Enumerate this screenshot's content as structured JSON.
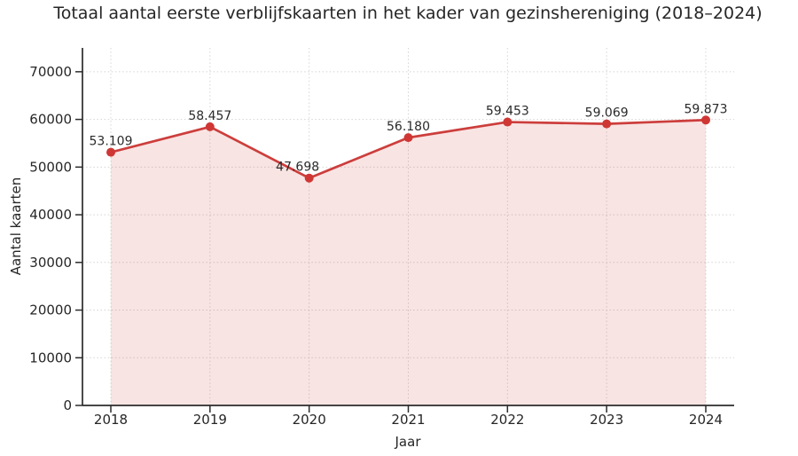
{
  "chart_data": {
    "type": "line",
    "title": "Totaal aantal eerste verblijfskaarten in het kader van gezinshereniging (2018–2024)",
    "xlabel": "Jaar",
    "ylabel": "Aantal kaarten",
    "categories": [
      "2018",
      "2019",
      "2020",
      "2021",
      "2022",
      "2023",
      "2024"
    ],
    "values": [
      53109,
      58457,
      47698,
      56180,
      59453,
      59069,
      59873
    ],
    "point_labels": [
      "53.109",
      "58.457",
      "47.698",
      "56.180",
      "59.453",
      "59.069",
      "59.873"
    ],
    "yticks": [
      0,
      10000,
      20000,
      30000,
      40000,
      50000,
      60000,
      70000
    ],
    "ylim": [
      0,
      75000
    ],
    "grid": "dotted",
    "legend_position": "none",
    "area_fill": true,
    "marker": "circle",
    "colors": {
      "line": "#cc3e3c",
      "marker": "#cf3734",
      "fill": "#cc3e3c",
      "fill_opacity": 0.14,
      "grid": "#d4d4d4",
      "spine": "#2b2b2b",
      "text": "#262626"
    }
  }
}
